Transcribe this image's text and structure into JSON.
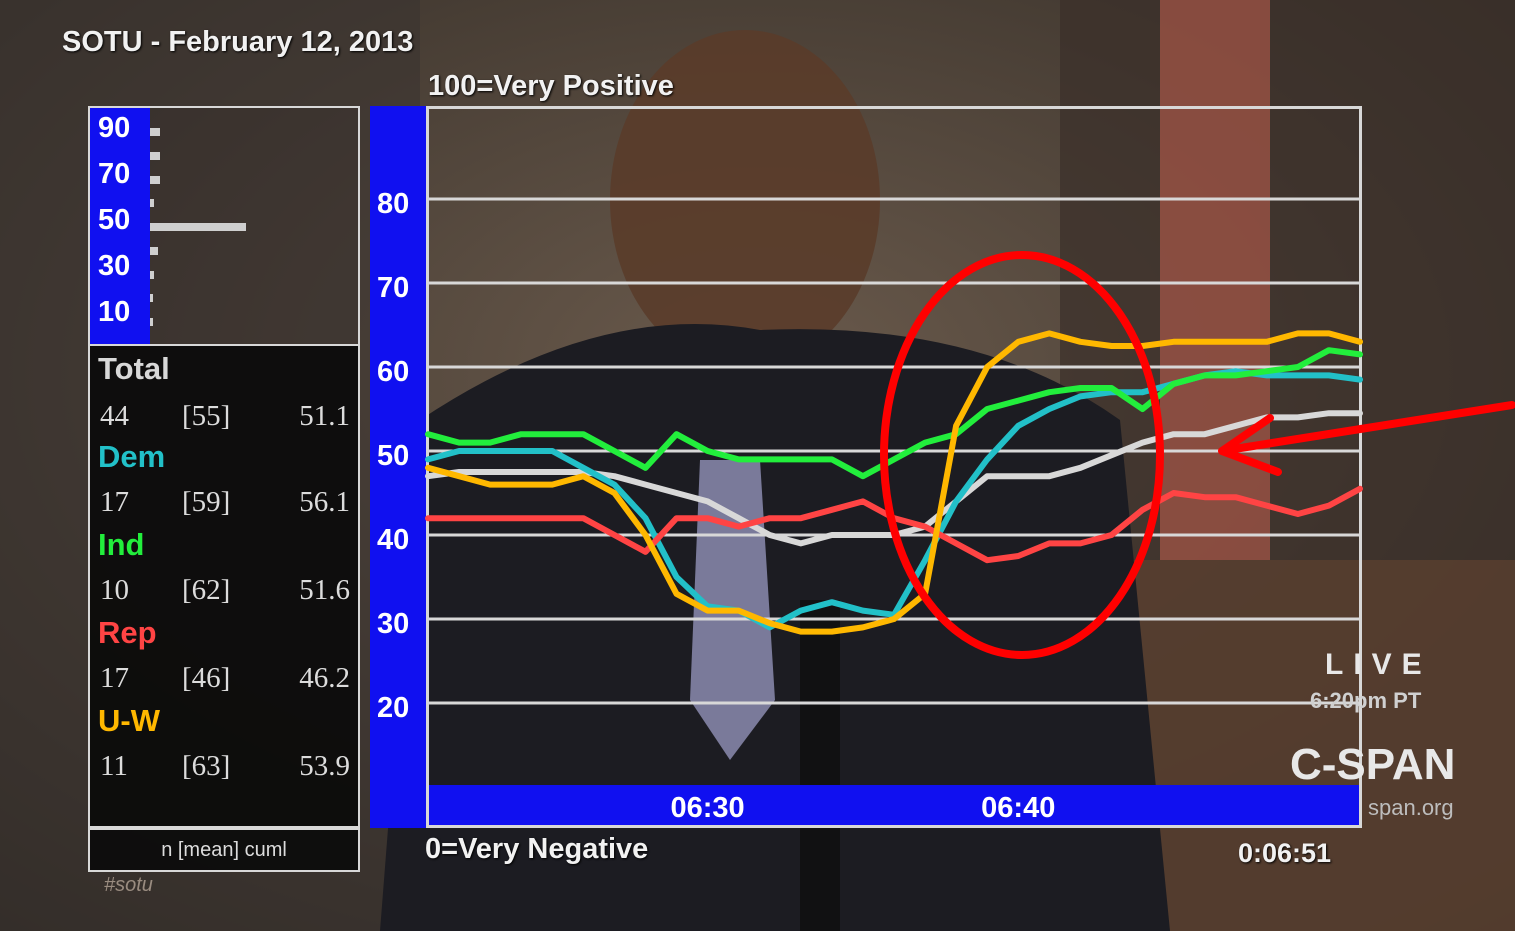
{
  "title": "SOTU - February 12, 2013",
  "scale_top_label": "100=Very Positive",
  "scale_bottom_label": "0=Very Negative",
  "clock": "0:06:51",
  "histogram": {
    "tick_labels": [
      "90",
      "70",
      "50",
      "30",
      "10"
    ],
    "bars": [
      {
        "level": 90,
        "length": 0.05
      },
      {
        "level": 80,
        "length": 0.05
      },
      {
        "level": 70,
        "length": 0.05
      },
      {
        "level": 60,
        "length": 0.02
      },
      {
        "level": 50,
        "length": 0.48
      },
      {
        "level": 40,
        "length": 0.04
      },
      {
        "level": 30,
        "length": 0.02
      },
      {
        "level": 20,
        "length": 0.01
      },
      {
        "level": 10,
        "length": 0.01
      }
    ]
  },
  "stats": {
    "groups": [
      {
        "name": "Total",
        "color": "#d8d8d8",
        "n": "44",
        "mean": "[55]",
        "cuml": "51.1"
      },
      {
        "name": "Dem",
        "color": "#22c0c8",
        "n": "17",
        "mean": "[59]",
        "cuml": "56.1"
      },
      {
        "name": "Ind",
        "color": "#22ee3c",
        "n": "10",
        "mean": "[62]",
        "cuml": "51.6"
      },
      {
        "name": "Rep",
        "color": "#ff4444",
        "n": "17",
        "mean": "[46]",
        "cuml": "46.2"
      },
      {
        "name": "U-W",
        "color": "#ffb800",
        "n": "11",
        "mean": "[63]",
        "cuml": "53.9"
      }
    ],
    "footer": "n [mean] cuml"
  },
  "overlay": {
    "live": "LIVE",
    "live_time": "6:20pm PT",
    "network": "C-SPAN",
    "network_url": "span.org",
    "hashtag": "#sotu",
    "annotation_color": "#ff0000"
  },
  "chart_data": {
    "type": "line",
    "ylim": [
      0,
      100
    ],
    "ytick_labels": [
      "80",
      "70",
      "60",
      "50",
      "40",
      "30",
      "20"
    ],
    "yticks": [
      80,
      70,
      60,
      50,
      40,
      30,
      20
    ],
    "grid": true,
    "xtick_labels": [
      "06:30",
      "06:40"
    ],
    "xticks": [
      390,
      400
    ],
    "x_range": [
      381,
      411
    ],
    "x": [
      381,
      382,
      383,
      384,
      385,
      386,
      387,
      388,
      389,
      390,
      391,
      392,
      393,
      394,
      395,
      396,
      397,
      398,
      399,
      400,
      401,
      402,
      403,
      404,
      405,
      406,
      407,
      408,
      409,
      410,
      411
    ],
    "series": [
      {
        "name": "Total",
        "color": "#d8d8d8",
        "values": [
          47,
          47.5,
          47.5,
          47.5,
          47.5,
          47.5,
          47,
          46,
          45,
          44,
          42,
          40,
          39,
          40,
          40,
          40,
          41,
          44,
          47,
          47,
          47,
          48,
          49.5,
          51,
          52,
          52,
          53,
          54,
          54,
          54.5,
          54.5
        ]
      },
      {
        "name": "Dem",
        "color": "#22c0c8",
        "values": [
          49,
          50,
          50,
          50,
          50,
          48,
          46,
          42,
          35,
          31.5,
          31,
          29,
          31,
          32,
          31,
          30.5,
          37,
          44,
          49,
          53,
          55,
          56.5,
          57,
          57,
          58,
          59,
          59.5,
          59,
          59,
          59,
          58.5
        ]
      },
      {
        "name": "Ind",
        "color": "#22ee3c",
        "values": [
          52,
          51,
          51,
          52,
          52,
          52,
          50,
          48,
          52,
          50,
          49,
          49,
          49,
          49,
          47,
          49,
          51,
          52,
          55,
          56,
          57,
          57.5,
          57.5,
          55,
          58,
          59,
          59,
          59.5,
          60,
          62,
          61.5
        ]
      },
      {
        "name": "Rep",
        "color": "#ff4444",
        "values": [
          42,
          42,
          42,
          42,
          42,
          42,
          40,
          38,
          42,
          42,
          41,
          42,
          42,
          43,
          44,
          42,
          41,
          39,
          37,
          37.5,
          39,
          39,
          40,
          43,
          45,
          44.5,
          44.5,
          43.5,
          42.5,
          43.5,
          45.5
        ]
      },
      {
        "name": "U-W",
        "color": "#ffb800",
        "values": [
          48,
          47,
          46,
          46,
          46,
          47,
          45,
          40,
          33,
          31,
          31,
          29.5,
          28.5,
          28.5,
          29,
          30,
          33,
          53,
          60,
          63,
          64,
          63,
          62.5,
          62.5,
          63,
          63,
          63,
          63,
          64,
          64,
          63
        ]
      }
    ]
  }
}
